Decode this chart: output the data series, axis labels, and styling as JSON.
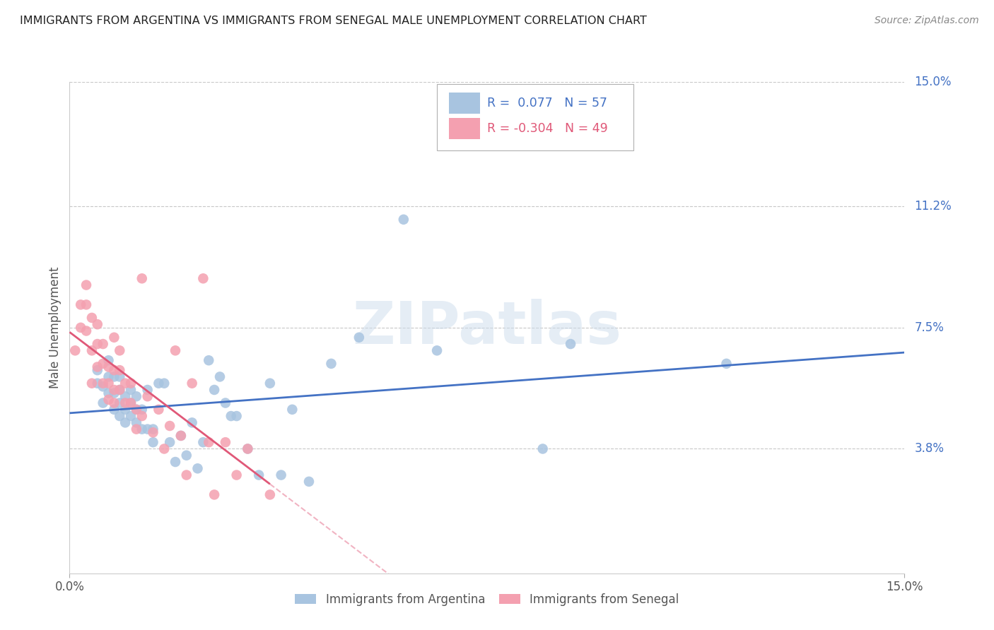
{
  "title": "IMMIGRANTS FROM ARGENTINA VS IMMIGRANTS FROM SENEGAL MALE UNEMPLOYMENT CORRELATION CHART",
  "source": "Source: ZipAtlas.com",
  "ylabel": "Male Unemployment",
  "xlim": [
    0.0,
    0.15
  ],
  "ylim": [
    0.0,
    0.15
  ],
  "right_ytick_vals": [
    0.15,
    0.112,
    0.075,
    0.038
  ],
  "right_ytick_labels": [
    "15.0%",
    "11.2%",
    "7.5%",
    "3.8%"
  ],
  "grid_color": "#c8c8c8",
  "background_color": "#ffffff",
  "argentina_color": "#a8c4e0",
  "senegal_color": "#f4a0b0",
  "argentina_line_color": "#4472c4",
  "senegal_line_color": "#e05878",
  "r_argentina": 0.077,
  "n_argentina": 57,
  "r_senegal": -0.304,
  "n_senegal": 49,
  "watermark": "ZIPatlas",
  "argentina_x": [
    0.005,
    0.005,
    0.006,
    0.006,
    0.007,
    0.007,
    0.007,
    0.008,
    0.008,
    0.008,
    0.009,
    0.009,
    0.009,
    0.009,
    0.01,
    0.01,
    0.01,
    0.011,
    0.011,
    0.011,
    0.012,
    0.012,
    0.012,
    0.013,
    0.013,
    0.014,
    0.014,
    0.015,
    0.015,
    0.016,
    0.017,
    0.018,
    0.019,
    0.02,
    0.021,
    0.022,
    0.023,
    0.024,
    0.025,
    0.026,
    0.027,
    0.028,
    0.029,
    0.03,
    0.032,
    0.034,
    0.036,
    0.038,
    0.04,
    0.043,
    0.047,
    0.052,
    0.06,
    0.066,
    0.085,
    0.09,
    0.118
  ],
  "argentina_y": [
    0.058,
    0.062,
    0.052,
    0.057,
    0.055,
    0.06,
    0.065,
    0.05,
    0.055,
    0.06,
    0.048,
    0.052,
    0.056,
    0.06,
    0.046,
    0.05,
    0.054,
    0.048,
    0.052,
    0.056,
    0.046,
    0.05,
    0.054,
    0.044,
    0.05,
    0.044,
    0.056,
    0.04,
    0.044,
    0.058,
    0.058,
    0.04,
    0.034,
    0.042,
    0.036,
    0.046,
    0.032,
    0.04,
    0.065,
    0.056,
    0.06,
    0.052,
    0.048,
    0.048,
    0.038,
    0.03,
    0.058,
    0.03,
    0.05,
    0.028,
    0.064,
    0.072,
    0.108,
    0.068,
    0.038,
    0.07,
    0.064
  ],
  "senegal_x": [
    0.001,
    0.002,
    0.002,
    0.003,
    0.003,
    0.003,
    0.004,
    0.004,
    0.004,
    0.005,
    0.005,
    0.005,
    0.006,
    0.006,
    0.006,
    0.007,
    0.007,
    0.007,
    0.008,
    0.008,
    0.008,
    0.008,
    0.009,
    0.009,
    0.009,
    0.01,
    0.01,
    0.011,
    0.011,
    0.012,
    0.012,
    0.013,
    0.013,
    0.014,
    0.015,
    0.016,
    0.017,
    0.018,
    0.019,
    0.02,
    0.021,
    0.022,
    0.024,
    0.025,
    0.026,
    0.028,
    0.03,
    0.032,
    0.036
  ],
  "senegal_y": [
    0.068,
    0.075,
    0.082,
    0.082,
    0.088,
    0.074,
    0.058,
    0.068,
    0.078,
    0.063,
    0.07,
    0.076,
    0.058,
    0.064,
    0.07,
    0.053,
    0.058,
    0.063,
    0.052,
    0.056,
    0.062,
    0.072,
    0.056,
    0.062,
    0.068,
    0.052,
    0.058,
    0.052,
    0.058,
    0.05,
    0.044,
    0.09,
    0.048,
    0.054,
    0.043,
    0.05,
    0.038,
    0.045,
    0.068,
    0.042,
    0.03,
    0.058,
    0.09,
    0.04,
    0.024,
    0.04,
    0.03,
    0.038,
    0.024
  ]
}
